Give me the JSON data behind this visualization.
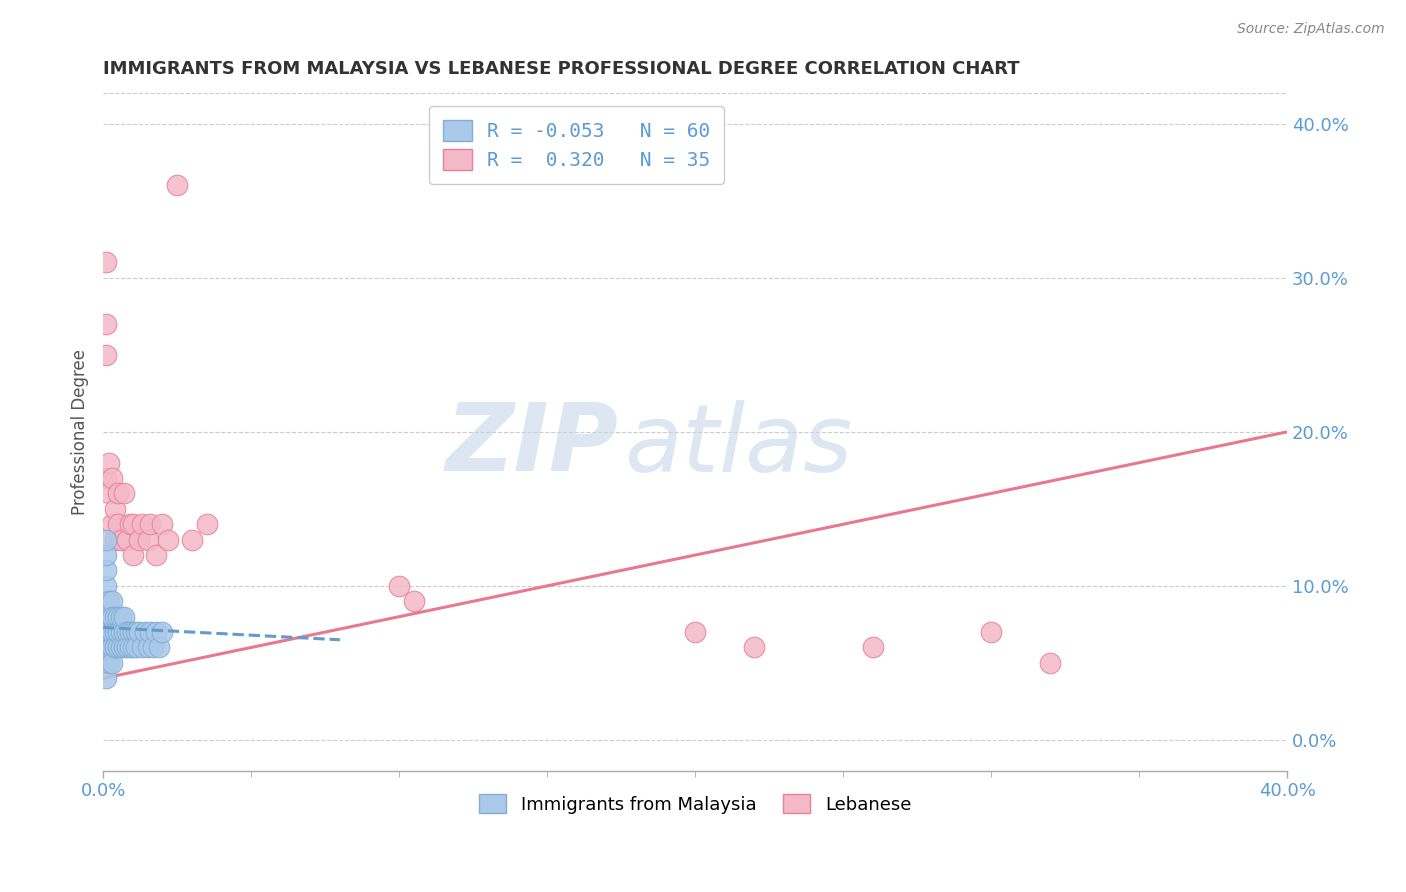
{
  "title": "IMMIGRANTS FROM MALAYSIA VS LEBANESE PROFESSIONAL DEGREE CORRELATION CHART",
  "source": "Source: ZipAtlas.com",
  "ylabel": "Professional Degree",
  "watermark_zip": "ZIP",
  "watermark_atlas": "atlas",
  "series": [
    {
      "name": "Immigrants from Malaysia",
      "color": "#aac8e8",
      "edge_color": "#80aed4",
      "R": -0.053,
      "N": 60,
      "line_color": "#6699cc",
      "line_style": "--",
      "points_x": [
        0.001,
        0.001,
        0.001,
        0.001,
        0.001,
        0.001,
        0.001,
        0.001,
        0.001,
        0.001,
        0.001,
        0.002,
        0.002,
        0.002,
        0.002,
        0.002,
        0.002,
        0.002,
        0.002,
        0.002,
        0.003,
        0.003,
        0.003,
        0.003,
        0.003,
        0.003,
        0.003,
        0.003,
        0.004,
        0.004,
        0.004,
        0.004,
        0.004,
        0.005,
        0.005,
        0.005,
        0.005,
        0.006,
        0.006,
        0.006,
        0.007,
        0.007,
        0.007,
        0.008,
        0.008,
        0.009,
        0.009,
        0.01,
        0.01,
        0.011,
        0.011,
        0.012,
        0.013,
        0.014,
        0.015,
        0.016,
        0.017,
        0.018,
        0.019,
        0.02
      ],
      "points_y": [
        0.06,
        0.07,
        0.08,
        0.09,
        0.1,
        0.11,
        0.12,
        0.13,
        0.05,
        0.04,
        0.06,
        0.07,
        0.08,
        0.09,
        0.06,
        0.07,
        0.05,
        0.08,
        0.06,
        0.07,
        0.06,
        0.07,
        0.08,
        0.09,
        0.06,
        0.07,
        0.05,
        0.08,
        0.07,
        0.06,
        0.08,
        0.07,
        0.06,
        0.07,
        0.06,
        0.08,
        0.07,
        0.07,
        0.06,
        0.08,
        0.06,
        0.07,
        0.08,
        0.07,
        0.06,
        0.07,
        0.06,
        0.07,
        0.06,
        0.07,
        0.06,
        0.07,
        0.06,
        0.07,
        0.06,
        0.07,
        0.06,
        0.07,
        0.06,
        0.07
      ],
      "trend_x": [
        0.0,
        0.08
      ],
      "trend_y": [
        0.073,
        0.065
      ]
    },
    {
      "name": "Lebanese",
      "color": "#f4b8c8",
      "edge_color": "#e88098",
      "R": 0.32,
      "N": 35,
      "line_color": "#e87890",
      "line_style": "-",
      "points_x": [
        0.001,
        0.001,
        0.001,
        0.001,
        0.002,
        0.002,
        0.003,
        0.003,
        0.004,
        0.004,
        0.005,
        0.005,
        0.006,
        0.007,
        0.008,
        0.009,
        0.01,
        0.01,
        0.012,
        0.013,
        0.015,
        0.016,
        0.018,
        0.02,
        0.022,
        0.025,
        0.03,
        0.035,
        0.1,
        0.105,
        0.2,
        0.22,
        0.26,
        0.3,
        0.32
      ],
      "points_y": [
        0.17,
        0.31,
        0.27,
        0.25,
        0.18,
        0.16,
        0.17,
        0.14,
        0.15,
        0.13,
        0.16,
        0.14,
        0.13,
        0.16,
        0.13,
        0.14,
        0.12,
        0.14,
        0.13,
        0.14,
        0.13,
        0.14,
        0.12,
        0.14,
        0.13,
        0.36,
        0.13,
        0.14,
        0.1,
        0.09,
        0.07,
        0.06,
        0.06,
        0.07,
        0.05
      ],
      "trend_x": [
        0.0,
        0.4
      ],
      "trend_y": [
        0.04,
        0.2
      ]
    }
  ],
  "xlim": [
    0.0,
    0.4
  ],
  "ylim": [
    -0.02,
    0.42
  ],
  "right_yticks": [
    0.0,
    0.1,
    0.2,
    0.3,
    0.4
  ],
  "right_yticklabels": [
    "0.0%",
    "10.0%",
    "20.0%",
    "30.0%",
    "40.0%"
  ],
  "background_color": "#ffffff",
  "grid_color": "#cccccc",
  "title_color": "#333333",
  "axis_color": "#5b9bd5",
  "legend_R_color": "#5b9bd5",
  "watermark_color_zip": "#c8d8e8",
  "watermark_color_atlas": "#c8d8e8",
  "watermark_alpha": 0.6
}
